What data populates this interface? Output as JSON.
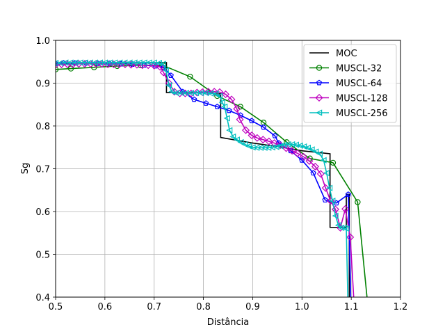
{
  "chart_data": {
    "type": "line",
    "title": "",
    "xlabel": "Distância",
    "ylabel": "Sg",
    "xlim": [
      0.5,
      1.2
    ],
    "ylim": [
      0.4,
      1.0
    ],
    "xticks": [
      0.5,
      0.6,
      0.7,
      0.8,
      0.9,
      1.0,
      1.1,
      1.2
    ],
    "yticks": [
      0.4,
      0.5,
      0.6,
      0.7,
      0.8,
      0.9,
      1.0
    ],
    "xtick_labels": [
      "0.5",
      "0.6",
      "0.7",
      "0.8",
      "0.9",
      "1.0",
      "1.1",
      "1.2"
    ],
    "ytick_labels": [
      "0.4",
      "0.5",
      "0.6",
      "0.7",
      "0.8",
      "0.9",
      "1.0"
    ],
    "grid": true,
    "legend_position": "top-right",
    "series": [
      {
        "name": "MOC",
        "color": "#000000",
        "marker": "none",
        "points": [
          [
            0.5,
            0.945
          ],
          [
            0.725,
            0.948
          ],
          [
            0.725,
            0.878
          ],
          [
            0.8,
            0.878
          ],
          [
            0.835,
            0.875
          ],
          [
            0.835,
            0.773
          ],
          [
            0.9,
            0.76
          ],
          [
            0.95,
            0.752
          ],
          [
            1.0,
            0.742
          ],
          [
            1.057,
            0.735
          ],
          [
            1.057,
            0.563
          ],
          [
            1.09,
            0.563
          ],
          [
            1.09,
            0.64
          ],
          [
            1.096,
            0.64
          ],
          [
            1.096,
            0.4
          ]
        ]
      },
      {
        "name": "MUSCL-32",
        "color": "#008000",
        "marker": "circle",
        "points": [
          [
            0.5,
            0.932
          ],
          [
            0.531,
            0.934
          ],
          [
            0.578,
            0.937
          ],
          [
            0.625,
            0.94
          ],
          [
            0.672,
            0.942
          ],
          [
            0.719,
            0.941
          ],
          [
            0.773,
            0.915
          ],
          [
            0.828,
            0.87
          ],
          [
            0.875,
            0.845
          ],
          [
            0.922,
            0.808
          ],
          [
            0.969,
            0.762
          ],
          [
            1.016,
            0.724
          ],
          [
            1.063,
            0.714
          ],
          [
            1.113,
            0.622
          ],
          [
            1.132,
            0.4
          ]
        ]
      },
      {
        "name": "MUSCL-64",
        "color": "#0000ff",
        "marker": "pentagon",
        "points": [
          [
            0.5,
            0.946
          ],
          [
            0.516,
            0.947
          ],
          [
            0.539,
            0.947
          ],
          [
            0.562,
            0.947
          ],
          [
            0.586,
            0.946
          ],
          [
            0.609,
            0.946
          ],
          [
            0.633,
            0.945
          ],
          [
            0.656,
            0.944
          ],
          [
            0.68,
            0.942
          ],
          [
            0.703,
            0.94
          ],
          [
            0.719,
            0.937
          ],
          [
            0.734,
            0.918
          ],
          [
            0.758,
            0.88
          ],
          [
            0.781,
            0.862
          ],
          [
            0.805,
            0.853
          ],
          [
            0.828,
            0.845
          ],
          [
            0.852,
            0.836
          ],
          [
            0.875,
            0.825
          ],
          [
            0.898,
            0.812
          ],
          [
            0.922,
            0.797
          ],
          [
            0.945,
            0.777
          ],
          [
            0.953,
            0.76
          ],
          [
            0.977,
            0.742
          ],
          [
            1.0,
            0.72
          ],
          [
            1.023,
            0.69
          ],
          [
            1.047,
            0.627
          ],
          [
            1.07,
            0.62
          ],
          [
            1.094,
            0.64
          ],
          [
            1.099,
            0.4
          ]
        ]
      },
      {
        "name": "MUSCL-128",
        "color": "#bf00bf",
        "marker": "diamond",
        "points": [
          [
            0.5,
            0.943
          ],
          [
            0.512,
            0.944
          ],
          [
            0.524,
            0.944
          ],
          [
            0.535,
            0.944
          ],
          [
            0.547,
            0.945
          ],
          [
            0.559,
            0.945
          ],
          [
            0.571,
            0.945
          ],
          [
            0.582,
            0.945
          ],
          [
            0.594,
            0.945
          ],
          [
            0.606,
            0.944
          ],
          [
            0.618,
            0.944
          ],
          [
            0.629,
            0.944
          ],
          [
            0.641,
            0.944
          ],
          [
            0.653,
            0.943
          ],
          [
            0.665,
            0.943
          ],
          [
            0.676,
            0.942
          ],
          [
            0.688,
            0.942
          ],
          [
            0.7,
            0.941
          ],
          [
            0.712,
            0.938
          ],
          [
            0.719,
            0.925
          ],
          [
            0.73,
            0.9
          ],
          [
            0.741,
            0.88
          ],
          [
            0.752,
            0.876
          ],
          [
            0.763,
            0.876
          ],
          [
            0.775,
            0.876
          ],
          [
            0.787,
            0.878
          ],
          [
            0.798,
            0.879
          ],
          [
            0.81,
            0.88
          ],
          [
            0.822,
            0.88
          ],
          [
            0.833,
            0.879
          ],
          [
            0.845,
            0.874
          ],
          [
            0.857,
            0.862
          ],
          [
            0.868,
            0.84
          ],
          [
            0.874,
            0.815
          ],
          [
            0.886,
            0.79
          ],
          [
            0.898,
            0.778
          ],
          [
            0.909,
            0.772
          ],
          [
            0.921,
            0.768
          ],
          [
            0.933,
            0.764
          ],
          [
            0.944,
            0.76
          ],
          [
            0.956,
            0.755
          ],
          [
            0.968,
            0.748
          ],
          [
            0.98,
            0.742
          ],
          [
            0.991,
            0.736
          ],
          [
            1.003,
            0.728
          ],
          [
            1.015,
            0.718
          ],
          [
            1.027,
            0.705
          ],
          [
            1.038,
            0.688
          ],
          [
            1.048,
            0.655
          ],
          [
            1.058,
            0.625
          ],
          [
            1.068,
            0.605
          ],
          [
            1.078,
            0.562
          ],
          [
            1.088,
            0.606
          ],
          [
            1.098,
            0.54
          ],
          [
            1.105,
            0.4
          ]
        ]
      },
      {
        "name": "MUSCL-256",
        "color": "#00bfbf",
        "marker": "triangle-left",
        "points": [
          [
            0.5,
            0.947
          ],
          [
            0.51,
            0.947
          ],
          [
            0.52,
            0.948
          ],
          [
            0.53,
            0.948
          ],
          [
            0.54,
            0.948
          ],
          [
            0.55,
            0.948
          ],
          [
            0.56,
            0.948
          ],
          [
            0.57,
            0.948
          ],
          [
            0.58,
            0.948
          ],
          [
            0.59,
            0.948
          ],
          [
            0.6,
            0.948
          ],
          [
            0.61,
            0.948
          ],
          [
            0.62,
            0.948
          ],
          [
            0.63,
            0.948
          ],
          [
            0.64,
            0.948
          ],
          [
            0.65,
            0.948
          ],
          [
            0.66,
            0.948
          ],
          [
            0.67,
            0.948
          ],
          [
            0.68,
            0.948
          ],
          [
            0.69,
            0.948
          ],
          [
            0.7,
            0.948
          ],
          [
            0.71,
            0.947
          ],
          [
            0.718,
            0.945
          ],
          [
            0.724,
            0.93
          ],
          [
            0.73,
            0.895
          ],
          [
            0.736,
            0.88
          ],
          [
            0.745,
            0.877
          ],
          [
            0.755,
            0.877
          ],
          [
            0.765,
            0.877
          ],
          [
            0.775,
            0.877
          ],
          [
            0.785,
            0.877
          ],
          [
            0.795,
            0.877
          ],
          [
            0.805,
            0.877
          ],
          [
            0.815,
            0.876
          ],
          [
            0.825,
            0.875
          ],
          [
            0.833,
            0.87
          ],
          [
            0.838,
            0.855
          ],
          [
            0.843,
            0.845
          ],
          [
            0.848,
            0.818
          ],
          [
            0.853,
            0.79
          ],
          [
            0.86,
            0.775
          ],
          [
            0.868,
            0.768
          ],
          [
            0.876,
            0.762
          ],
          [
            0.884,
            0.757
          ],
          [
            0.892,
            0.753
          ],
          [
            0.9,
            0.75
          ],
          [
            0.908,
            0.749
          ],
          [
            0.916,
            0.749
          ],
          [
            0.924,
            0.749
          ],
          [
            0.932,
            0.749
          ],
          [
            0.94,
            0.75
          ],
          [
            0.948,
            0.751
          ],
          [
            0.956,
            0.753
          ],
          [
            0.964,
            0.756
          ],
          [
            0.972,
            0.757
          ],
          [
            0.98,
            0.757
          ],
          [
            0.988,
            0.756
          ],
          [
            0.996,
            0.754
          ],
          [
            1.004,
            0.752
          ],
          [
            1.012,
            0.749
          ],
          [
            1.02,
            0.745
          ],
          [
            1.028,
            0.74
          ],
          [
            1.036,
            0.735
          ],
          [
            1.044,
            0.72
          ],
          [
            1.05,
            0.69
          ],
          [
            1.056,
            0.655
          ],
          [
            1.062,
            0.625
          ],
          [
            1.068,
            0.59
          ],
          [
            1.074,
            0.568
          ],
          [
            1.08,
            0.562
          ],
          [
            1.086,
            0.562
          ],
          [
            1.09,
            0.56
          ],
          [
            1.093,
            0.4
          ]
        ]
      }
    ]
  }
}
